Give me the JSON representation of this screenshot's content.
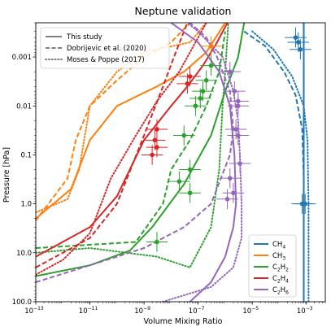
{
  "chart_data": {
    "type": "line",
    "title": "Neptune validation",
    "xlabel": "Volume Mixing Ratio",
    "ylabel": "Pressure [hPa]",
    "x_scale": "log",
    "y_scale": "log",
    "y_inverted": true,
    "xlim": [
      1e-13,
      0.005
    ],
    "ylim": [
      100.0,
      0.0002
    ],
    "x_ticks": [
      {
        "value": 1e-13,
        "label": "10",
        "exp": "−13"
      },
      {
        "value": 1e-11,
        "label": "10",
        "exp": "−11"
      },
      {
        "value": 1e-09,
        "label": "10",
        "exp": "−9"
      },
      {
        "value": 1e-07,
        "label": "10",
        "exp": "−7"
      },
      {
        "value": 1e-05,
        "label": "10",
        "exp": "−5"
      },
      {
        "value": 0.001,
        "label": "10",
        "exp": "−3"
      }
    ],
    "y_ticks": [
      {
        "value": 0.001,
        "label": "0.001"
      },
      {
        "value": 0.01,
        "label": "0.01"
      },
      {
        "value": 0.1,
        "label": "0.1"
      },
      {
        "value": 1.0,
        "label": "1.0"
      },
      {
        "value": 10.0,
        "label": "10.0"
      },
      {
        "value": 100.0,
        "label": "100.0"
      }
    ],
    "grid": false,
    "style_legend": {
      "placement": "top-left",
      "entries": [
        {
          "label": "This study",
          "dash": "solid"
        },
        {
          "label": "Dobrijevic et al. (2020)",
          "dash": "dashed"
        },
        {
          "label": "Moses & Poppe (2017)",
          "dash": "dotted"
        }
      ]
    },
    "species_legend": {
      "placement": "bottom-right",
      "entries": [
        {
          "label": "CH",
          "sub": "4",
          "color": "#1f77b4"
        },
        {
          "label": "CH",
          "sub": "3",
          "color": "#ff7f0e"
        },
        {
          "label": "C",
          "sub": "2",
          "rest": "H",
          "sub2": "2",
          "color": "#2ca02c"
        },
        {
          "label": "C",
          "sub": "2",
          "rest": "H",
          "sub2": "4",
          "color": "#d62728"
        },
        {
          "label": "C",
          "sub": "2",
          "rest": "H",
          "sub2": "6",
          "color": "#9467bd"
        }
      ]
    },
    "series": [
      {
        "species": "CH4",
        "color": "#1f77b4",
        "style": "solid",
        "points": [
          [
            0.0008,
            0.0002
          ],
          [
            0.0008,
            1
          ],
          [
            0.0008,
            10
          ],
          [
            0.0008,
            100
          ]
        ]
      },
      {
        "species": "CH4",
        "color": "#1f77b4",
        "style": "dashed",
        "points": [
          [
            5e-06,
            0.0003
          ],
          [
            3e-05,
            0.0006
          ],
          [
            0.00015,
            0.002
          ],
          [
            0.0004,
            0.006
          ],
          [
            0.0007,
            0.03
          ],
          [
            0.0008,
            0.3
          ],
          [
            0.0008,
            100
          ]
        ]
      },
      {
        "species": "CH4",
        "color": "#1f77b4",
        "style": "dotted",
        "points": [
          [
            1e-05,
            0.0003
          ],
          [
            6e-05,
            0.0007
          ],
          [
            0.0003,
            0.0025
          ],
          [
            0.0008,
            0.01
          ],
          [
            0.0011,
            0.05
          ],
          [
            0.0012,
            1
          ],
          [
            0.0012,
            100
          ]
        ]
      },
      {
        "species": "CH3",
        "color": "#ff7f0e",
        "style": "solid",
        "points": [
          [
            1e-13,
            2
          ],
          [
            2e-12,
            0.5
          ],
          [
            1e-11,
            0.05
          ],
          [
            1e-10,
            0.01
          ],
          [
            3e-09,
            0.004
          ],
          [
            3e-08,
            0.002
          ],
          [
            2e-07,
            0.0008
          ],
          [
            1e-06,
            0.0002
          ]
        ]
      },
      {
        "species": "CH3",
        "color": "#ff7f0e",
        "style": "dashed",
        "points": [
          [
            1e-13,
            2.2
          ],
          [
            1.5e-12,
            0.3
          ],
          [
            3e-12,
            0.05
          ],
          [
            1e-11,
            0.01
          ],
          [
            1e-10,
            0.003
          ],
          [
            1e-09,
            0.001
          ],
          [
            1e-08,
            0.0005
          ],
          [
            5e-08,
            0.0002
          ]
        ]
      },
      {
        "species": "CH3",
        "color": "#ff7f0e",
        "style": "dotted",
        "points": [
          [
            1e-13,
            1.5
          ],
          [
            1.5e-12,
            0.8
          ],
          [
            4e-12,
            0.2
          ],
          [
            1e-11,
            0.01
          ],
          [
            1e-10,
            0.002
          ],
          [
            1e-09,
            0.0008
          ],
          [
            5e-08,
            0.0005
          ],
          [
            2e-07,
            0.0002
          ]
        ]
      },
      {
        "species": "C2H2",
        "color": "#2ca02c",
        "style": "solid",
        "points": [
          [
            1e-13,
            30
          ],
          [
            1e-11,
            18
          ],
          [
            3e-10,
            9
          ],
          [
            2e-09,
            3
          ],
          [
            3e-08,
            0.4
          ],
          [
            3e-07,
            0.04
          ],
          [
            1e-06,
            0.005
          ],
          [
            3e-06,
            0.001
          ],
          [
            5e-06,
            0.0002
          ]
        ]
      },
      {
        "species": "C2H2",
        "color": "#2ca02c",
        "style": "dashed",
        "points": [
          [
            1e-13,
            8
          ],
          [
            5e-10,
            6
          ],
          [
            5e-09,
            1
          ],
          [
            1e-08,
            0.2
          ],
          [
            5e-08,
            0.05
          ],
          [
            2e-07,
            0.01
          ],
          [
            6e-07,
            0.002
          ],
          [
            1e-06,
            0.0003
          ]
        ]
      },
      {
        "species": "C2H2",
        "color": "#2ca02c",
        "style": "dotted",
        "points": [
          [
            1e-13,
            10
          ],
          [
            1e-11,
            8
          ],
          [
            3e-09,
            12
          ],
          [
            5e-08,
            20
          ],
          [
            3e-07,
            3
          ],
          [
            6e-07,
            0.2
          ],
          [
            8e-07,
            0.01
          ],
          [
            1e-06,
            0.002
          ],
          [
            1.3e-06,
            0.0002
          ]
        ]
      },
      {
        "species": "C2H4",
        "color": "#d62728",
        "style": "solid",
        "points": [
          [
            1e-13,
            12
          ],
          [
            1e-11,
            3
          ],
          [
            1e-10,
            0.7
          ],
          [
            1e-09,
            0.05
          ],
          [
            1e-08,
            0.01
          ],
          [
            4e-08,
            0.004
          ],
          [
            1.5e-07,
            0.0015
          ],
          [
            5e-07,
            0.0005
          ],
          [
            1.2e-06,
            0.0002
          ]
        ]
      },
      {
        "species": "C2H4",
        "color": "#d62728",
        "style": "dashed",
        "points": [
          [
            1e-13,
            20
          ],
          [
            1e-11,
            5
          ],
          [
            1e-10,
            1
          ],
          [
            1e-09,
            0.04
          ],
          [
            5e-09,
            0.004
          ],
          [
            1.5e-08,
            0.0008
          ],
          [
            4e-08,
            0.0002
          ]
        ]
      },
      {
        "species": "C2H4",
        "color": "#d62728",
        "style": "dotted",
        "points": [
          [
            1e-13,
            28
          ],
          [
            1e-12,
            14
          ],
          [
            1e-11,
            4
          ],
          [
            6e-11,
            0.3
          ],
          [
            5e-10,
            0.04
          ],
          [
            3e-09,
            0.008
          ],
          [
            2e-08,
            0.002
          ],
          [
            8e-08,
            0.0005
          ],
          [
            2e-07,
            0.0002
          ]
        ]
      },
      {
        "species": "C2H6",
        "color": "#9467bd",
        "style": "solid",
        "points": [
          [
            5e-08,
            100
          ],
          [
            3e-07,
            40
          ],
          [
            1e-06,
            12
          ],
          [
            2e-06,
            3
          ],
          [
            2.5e-06,
            1
          ],
          [
            2.2e-06,
            0.1
          ],
          [
            1.5e-06,
            0.01
          ],
          [
            6e-07,
            0.002
          ],
          [
            1e-07,
            0.0005
          ],
          [
            1e-08,
            0.0002
          ]
        ]
      },
      {
        "species": "C2H6",
        "color": "#9467bd",
        "style": "dashed",
        "points": [
          [
            1e-13,
            40
          ],
          [
            1e-11,
            18
          ],
          [
            1e-09,
            8
          ],
          [
            3e-08,
            3
          ],
          [
            3e-07,
            1
          ],
          [
            1.5e-06,
            0.1
          ],
          [
            2e-06,
            0.03
          ],
          [
            1.5e-06,
            0.005
          ],
          [
            5e-07,
            0.001
          ],
          [
            2e-07,
            0.0004
          ],
          [
            5e-08,
            0.0002
          ]
        ]
      },
      {
        "species": "C2H6",
        "color": "#9467bd",
        "style": "dotted",
        "points": [
          [
            5e-09,
            100
          ],
          [
            3e-07,
            50
          ],
          [
            2e-06,
            20
          ],
          [
            4e-06,
            5
          ],
          [
            4e-06,
            1
          ],
          [
            3.5e-06,
            0.1
          ],
          [
            3e-06,
            0.02
          ],
          [
            2e-06,
            0.005
          ],
          [
            8e-07,
            0.001
          ],
          [
            1e-07,
            0.0003
          ],
          [
            4e-08,
            0.0002
          ]
        ]
      }
    ],
    "observations": [
      {
        "species": "CH4",
        "color": "#1f77b4",
        "points": [
          [
            0.0004,
            0.0004
          ],
          [
            0.0005,
            0.0005
          ],
          [
            0.0006,
            0.0007
          ],
          [
            0.0007,
            1.0
          ],
          [
            0.0009,
            1.0
          ]
        ]
      },
      {
        "species": "CH3",
        "color": "#ff7f0e",
        "points": [
          [
            3e-07,
            0.0006
          ]
        ]
      },
      {
        "species": "C2H2",
        "color": "#2ca02c",
        "points": [
          [
            3e-07,
            0.0015
          ],
          [
            2e-07,
            0.003
          ],
          [
            1.5e-07,
            0.005
          ],
          [
            1.2e-07,
            0.007
          ],
          [
            8e-08,
            0.01
          ],
          [
            3e-08,
            0.04
          ],
          [
            5e-08,
            0.2
          ],
          [
            2e-08,
            0.35
          ],
          [
            5e-08,
            0.6
          ],
          [
            3e-09,
            6
          ]
        ]
      },
      {
        "species": "C2H4",
        "color": "#d62728",
        "points": [
          [
            5e-08,
            0.0025
          ],
          [
            4e-08,
            0.0035
          ],
          [
            3e-09,
            0.03
          ],
          [
            2.5e-09,
            0.05
          ],
          [
            3e-09,
            0.07
          ],
          [
            2e-09,
            0.1
          ]
        ]
      },
      {
        "species": "C2H6",
        "color": "#9467bd",
        "points": [
          [
            1.5e-06,
            0.002
          ],
          [
            2.2e-06,
            0.005
          ],
          [
            3e-06,
            0.008
          ],
          [
            3e-06,
            0.01
          ],
          [
            2.5e-06,
            0.03
          ],
          [
            3e-06,
            0.04
          ],
          [
            3.5e-06,
            0.15
          ],
          [
            1.5e-06,
            0.3
          ],
          [
            2e-06,
            0.6
          ],
          [
            1.2e-06,
            0.8
          ]
        ]
      }
    ]
  }
}
